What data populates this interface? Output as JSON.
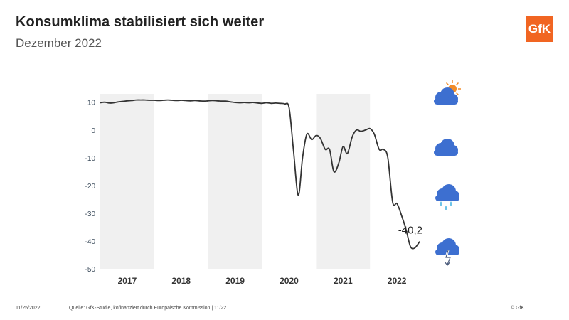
{
  "header": {
    "title": "Konsumklima stabilisiert sich weiter",
    "subtitle": "Dezember 2022",
    "logo_text": "GfK"
  },
  "footer": {
    "date": "11/25/2022",
    "source": "Quelle: GfK-Studie, kofinanziert durch Europäische Kommission | 11/22",
    "copyright": "© GfK"
  },
  "colors": {
    "line": "#333333",
    "band": "#f0f0f0",
    "cloud": "#3d6fd0",
    "sun": "#f28c28",
    "rain": "#6cc4e8",
    "logo": "#f16522"
  },
  "icons": [
    "sun-cloud-icon",
    "cloud-icon",
    "rain-cloud-icon",
    "storm-cloud-icon"
  ],
  "chart_data": {
    "type": "line",
    "title": "Konsumklima stabilisiert sich weiter",
    "subtitle": "Dezember 2022",
    "xlabel": "",
    "ylabel": "",
    "ylim": [
      -50,
      13
    ],
    "yticks": [
      10,
      0,
      -10,
      -20,
      -30,
      -40,
      -50
    ],
    "xlim": [
      2016.5,
      2022.42
    ],
    "year_labels": [
      "2017",
      "2018",
      "2019",
      "2020",
      "2021",
      "2022"
    ],
    "shaded_years": [
      "2017",
      "2019",
      "2021"
    ],
    "grid": false,
    "last_value_label": "-40,2",
    "series": [
      {
        "x": [
          2016.5,
          2016.58,
          2016.67,
          2016.75,
          2016.83,
          2016.92,
          2017.0,
          2017.08,
          2017.17,
          2017.25,
          2017.33,
          2017.42,
          2017.5,
          2017.58,
          2017.67,
          2017.75,
          2017.83,
          2017.92,
          2018.0,
          2018.08,
          2018.17,
          2018.25,
          2018.33,
          2018.42,
          2018.5,
          2018.58,
          2018.67,
          2018.75,
          2018.83,
          2018.92,
          2019.0,
          2019.08,
          2019.17,
          2019.25,
          2019.33,
          2019.42,
          2019.5,
          2019.58,
          2019.67,
          2019.75,
          2019.83,
          2019.92,
          2020.0,
          2020.08,
          2020.17,
          2020.25,
          2020.33,
          2020.42,
          2020.5,
          2020.58,
          2020.67,
          2020.75,
          2020.83,
          2020.92,
          2021.0,
          2021.08,
          2021.17,
          2021.25,
          2021.33,
          2021.42,
          2021.5,
          2021.58,
          2021.67,
          2021.75,
          2021.83,
          2021.92,
          2022.0,
          2022.08,
          2022.17,
          2022.25,
          2022.33,
          2022.42
        ],
        "y": [
          9.8,
          10.0,
          9.7,
          9.8,
          10.1,
          10.3,
          10.5,
          10.6,
          10.8,
          10.8,
          10.8,
          10.7,
          10.7,
          10.6,
          10.7,
          10.8,
          10.7,
          10.6,
          10.7,
          10.6,
          10.5,
          10.6,
          10.5,
          10.4,
          10.5,
          10.6,
          10.5,
          10.4,
          10.4,
          10.1,
          9.9,
          9.8,
          9.9,
          9.8,
          9.9,
          9.7,
          9.6,
          9.8,
          9.6,
          9.7,
          9.6,
          9.4,
          8.0,
          -7.0,
          -23.5,
          -10.0,
          -1.5,
          -3.5,
          -2.0,
          -3.0,
          -7.0,
          -7.0,
          -15.0,
          -12.0,
          -6.0,
          -8.5,
          -2.5,
          0.0,
          -0.5,
          0.0,
          0.5,
          -1.5,
          -7.0,
          -7.0,
          -10.0,
          -26.0,
          -26.5,
          -30.5,
          -36.0,
          -42.0,
          -42.5,
          -40.2
        ]
      }
    ]
  }
}
